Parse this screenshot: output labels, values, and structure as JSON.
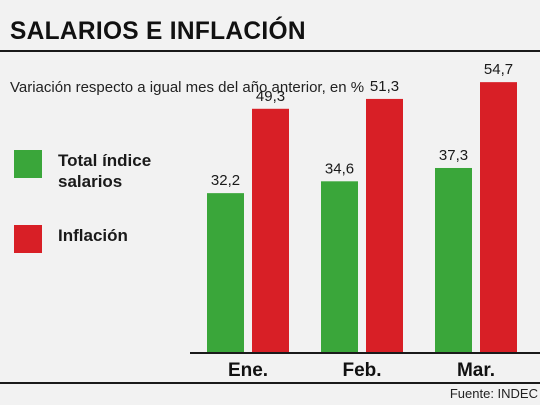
{
  "header": {
    "title": "SALARIOS E INFLACIÓN",
    "subtitle": "Variación respecto a igual mes del año anterior, en %"
  },
  "legend": [
    {
      "label": "Total índice salarios",
      "color": "#3aa63a"
    },
    {
      "label": "Inflación",
      "color": "#d81f26"
    }
  ],
  "footer": {
    "source": "Fuente: INDEC"
  },
  "chart_data": {
    "type": "bar",
    "categories": [
      "Ene.",
      "Feb.",
      "Mar."
    ],
    "series": [
      {
        "name": "Total índice salarios",
        "values": [
          32.2,
          34.6,
          37.3
        ],
        "labels": [
          "32,2",
          "34,6",
          "37,3"
        ],
        "color": "#3aa63a"
      },
      {
        "name": "Inflación",
        "values": [
          49.3,
          51.3,
          54.7
        ],
        "labels": [
          "49,3",
          "51,3",
          "54,7"
        ],
        "color": "#d81f26"
      }
    ],
    "title": "SALARIOS E INFLACIÓN",
    "ylim": [
      0,
      60
    ],
    "grid": false,
    "legend_position": "left"
  }
}
